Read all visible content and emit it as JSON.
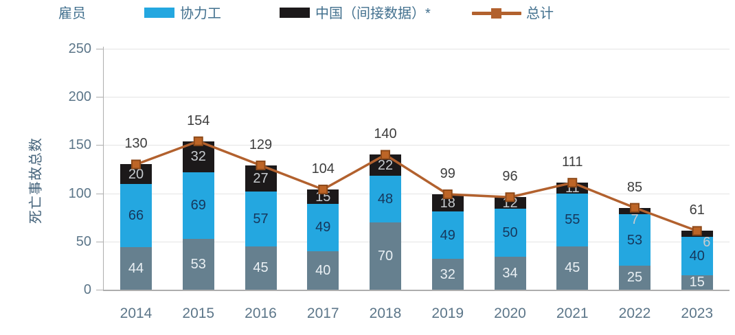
{
  "legend": {
    "employee_label": "雇员",
    "items": [
      {
        "label": "协力工",
        "color": "#24A7E0",
        "type": "box"
      },
      {
        "label": "中国（间接数据）*",
        "color": "#1C191A",
        "type": "box"
      },
      {
        "label": "总计",
        "color": "#B2612E",
        "type": "line"
      }
    ]
  },
  "chart_data": {
    "type": "bar",
    "subtype": "stacked-bar-with-line",
    "title": "",
    "xlabel": "",
    "ylabel": "死亡事故总数",
    "ylim": [
      0,
      250
    ],
    "yticks": [
      0,
      50,
      100,
      150,
      200,
      250
    ],
    "grid": true,
    "legend_position": "top",
    "categories": [
      "2014",
      "2015",
      "2016",
      "2017",
      "2018",
      "2019",
      "2020",
      "2021",
      "2022",
      "2023"
    ],
    "series": [
      {
        "name": "雇员",
        "color": "#66808F",
        "label_color": "#EAF0F4",
        "values": [
          44,
          53,
          45,
          40,
          70,
          32,
          34,
          45,
          25,
          15
        ]
      },
      {
        "name": "协力工",
        "color": "#24A7E0",
        "label_color": "#16375C",
        "values": [
          66,
          69,
          57,
          49,
          48,
          49,
          50,
          55,
          53,
          40
        ]
      },
      {
        "name": "中国（间接数据）*",
        "color": "#1C191A",
        "label_color": "#C7CBCF",
        "values": [
          20,
          32,
          27,
          15,
          22,
          18,
          12,
          11,
          7,
          6
        ]
      }
    ],
    "line_series": {
      "name": "总计",
      "color": "#B2612E",
      "marker_fill": "#BD6527",
      "marker_stroke": "#8E4A1A",
      "values": [
        130,
        154,
        129,
        104,
        140,
        99,
        96,
        111,
        85,
        61
      ]
    }
  }
}
